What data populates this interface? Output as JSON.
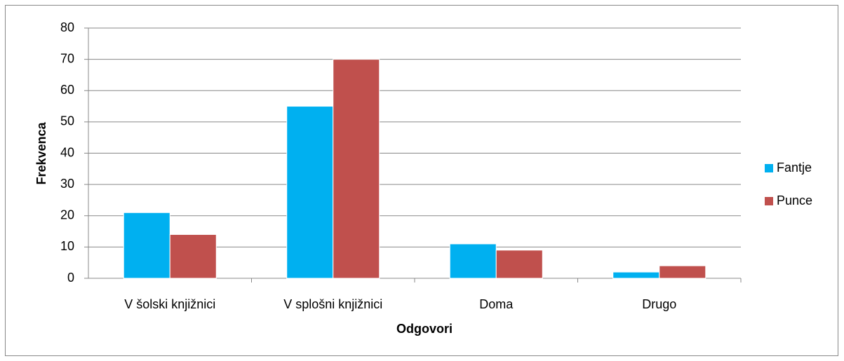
{
  "chart_data": {
    "type": "bar",
    "categories": [
      "V šolski knjižnici",
      "V splošni knjižnici",
      "Doma",
      "Drugo"
    ],
    "series": [
      {
        "name": "Fantje",
        "color": "#00b0f0",
        "values": [
          21,
          55,
          11,
          2
        ]
      },
      {
        "name": "Punce",
        "color": "#c0504d",
        "values": [
          14,
          70,
          9,
          4
        ]
      }
    ],
    "ylim": [
      0,
      80
    ],
    "yticks": [
      0,
      10,
      20,
      30,
      40,
      50,
      60,
      70,
      80
    ],
    "xlabel": "Odgovori",
    "ylabel": "Frekvenca",
    "grid": true,
    "legend": "right"
  }
}
